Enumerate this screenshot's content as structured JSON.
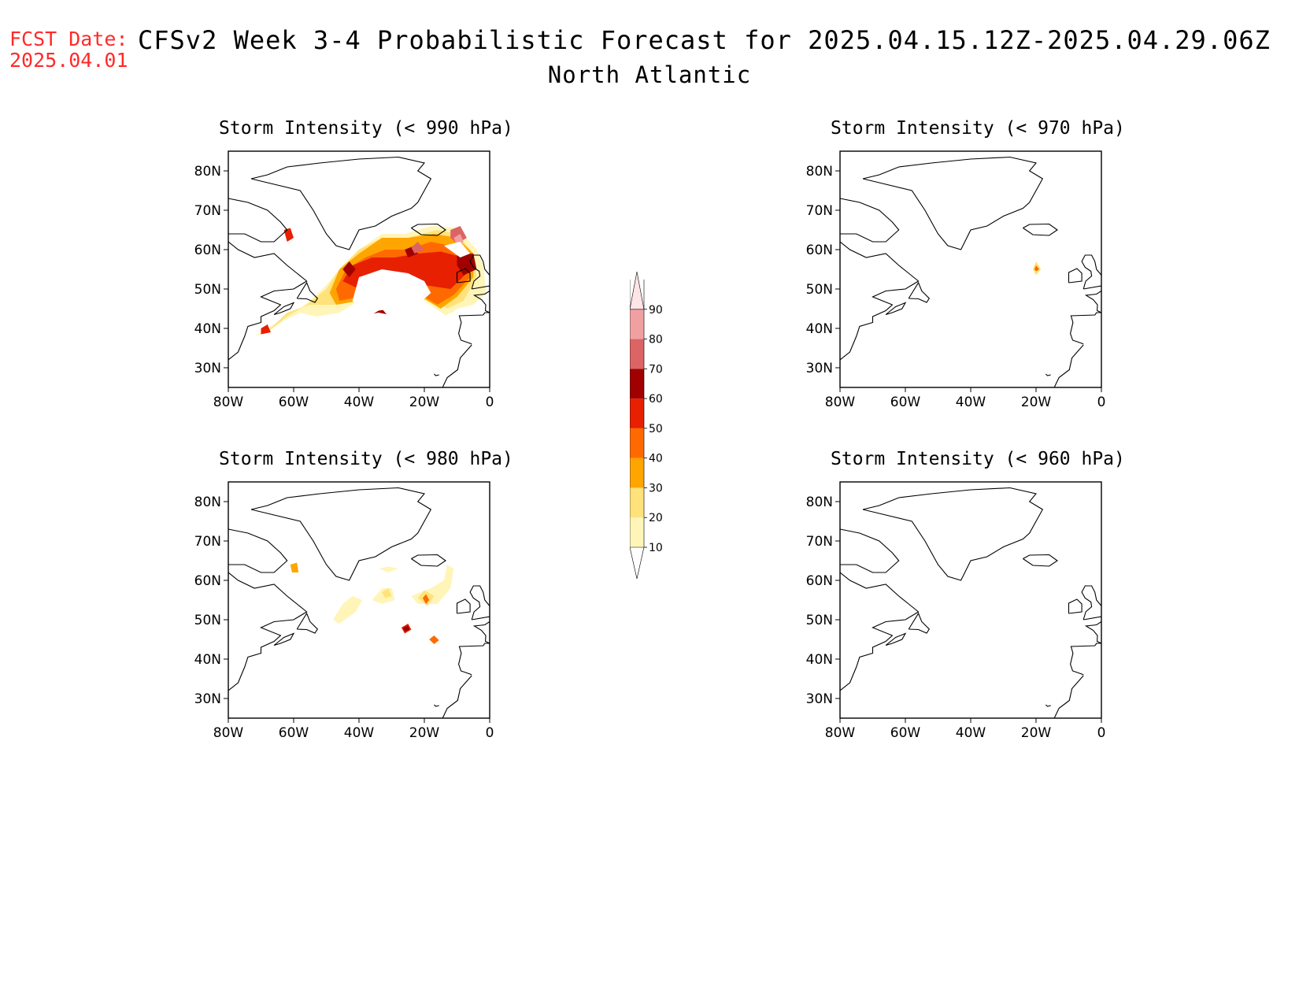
{
  "header": {
    "fcst_label": "FCST Date:",
    "fcst_date": "2025.04.01",
    "title": "CFSv2 Week 3-4 Probabilistic Forecast for 2025.04.15.12Z-2025.04.29.06Z",
    "subtitle": "North Atlantic"
  },
  "axes": {
    "x_ticks": [
      "80W",
      "60W",
      "40W",
      "20W",
      "0"
    ],
    "y_ticks": [
      "80N",
      "70N",
      "60N",
      "50N",
      "40N",
      "30N"
    ]
  },
  "panels": [
    {
      "id": "p990",
      "title": "Storm Intensity (< 990 hPa)"
    },
    {
      "id": "p970",
      "title": "Storm Intensity (< 970 hPa)"
    },
    {
      "id": "p980",
      "title": "Storm Intensity (< 980 hPa)"
    },
    {
      "id": "p960",
      "title": "Storm Intensity (< 960 hPa)"
    }
  ],
  "colorbar": {
    "levels": [
      "10",
      "20",
      "30",
      "40",
      "50",
      "60",
      "70",
      "80",
      "90"
    ],
    "colors": [
      "#fff5b8",
      "#ffe27a",
      "#ffa500",
      "#ff6a00",
      "#e62000",
      "#a00000",
      "#dc6464",
      "#f0a0a0",
      "#ffe4e6"
    ]
  }
}
